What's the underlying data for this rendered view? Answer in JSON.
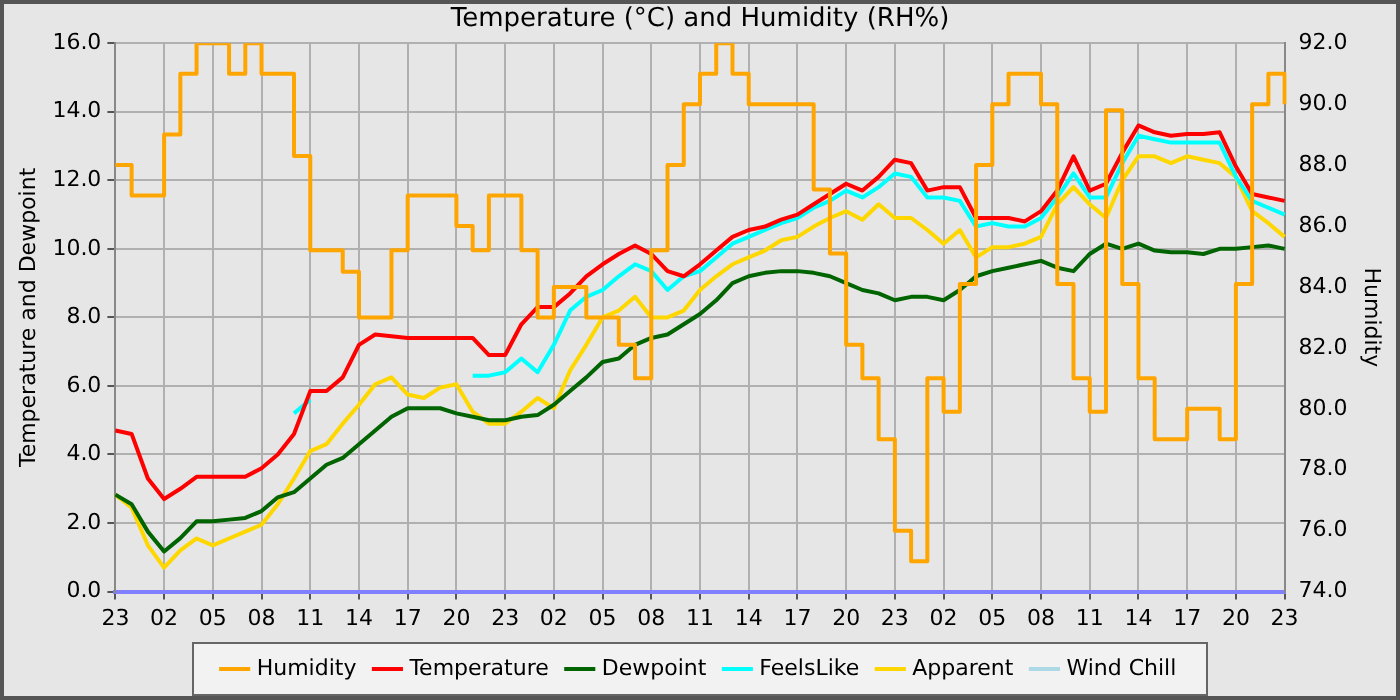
{
  "chart_data": {
    "type": "line",
    "title": "Temperature (°C) and Humidity (RH%)",
    "ylabel": "Temperature and Dewpoint",
    "y2label": "Humidity",
    "categories": [
      "23",
      null,
      null,
      "02",
      null,
      null,
      "05",
      null,
      null,
      "08",
      null,
      null,
      "11",
      null,
      null,
      "14",
      null,
      null,
      "17",
      null,
      null,
      "20",
      null,
      null,
      "23",
      null,
      null,
      "02",
      null,
      null,
      "05",
      null,
      null,
      "08",
      null,
      null,
      "11",
      null,
      null,
      "14",
      null,
      null,
      "17",
      null,
      null,
      "20",
      null,
      null,
      "23",
      null,
      null,
      "02",
      null,
      null,
      "05",
      null,
      null,
      "08",
      null,
      null,
      "11",
      null,
      null,
      "14",
      null,
      null,
      "17",
      null,
      null,
      "20",
      null,
      null,
      "23"
    ],
    "ylim": [
      0,
      16
    ],
    "yticks": [
      {
        "value": 0,
        "label": "0.0"
      },
      {
        "value": 2,
        "label": "2.0"
      },
      {
        "value": 4,
        "label": "4.0"
      },
      {
        "value": 6,
        "label": "6.0"
      },
      {
        "value": 8,
        "label": "8.0"
      },
      {
        "value": 10,
        "label": "10.0"
      },
      {
        "value": 12,
        "label": "12.0"
      },
      {
        "value": 14,
        "label": "14.0"
      },
      {
        "value": 16,
        "label": "16.0"
      }
    ],
    "y2lim": [
      74,
      92
    ],
    "y2ticks": [
      {
        "value": 74,
        "label": "74.0"
      },
      {
        "value": 76,
        "label": "76.0"
      },
      {
        "value": 78,
        "label": "78.0"
      },
      {
        "value": 80,
        "label": "80.0"
      },
      {
        "value": 82,
        "label": "82.0"
      },
      {
        "value": 84,
        "label": "84.0"
      },
      {
        "value": 86,
        "label": "86.0"
      },
      {
        "value": 88,
        "label": "88.0"
      },
      {
        "value": 90,
        "label": "90.0"
      },
      {
        "value": 92,
        "label": "92.0"
      }
    ],
    "grid": true,
    "legend": "bottom",
    "marker": "none",
    "series": [
      {
        "name": "Humidity",
        "color": "#ffa500",
        "type": "step",
        "axis": "y2",
        "values": [
          88,
          87,
          87,
          89,
          91,
          92,
          92,
          91,
          92,
          91,
          91,
          88.3,
          85.2,
          85.2,
          84.5,
          83,
          83,
          85.2,
          87,
          87,
          87,
          86,
          85.2,
          87,
          87,
          85.2,
          83,
          84,
          84,
          83,
          83,
          82.1,
          81,
          85.2,
          88,
          90,
          91,
          92,
          91,
          90,
          90,
          90,
          90,
          87.2,
          85.1,
          82.1,
          81,
          79,
          76,
          75,
          81,
          79.9,
          84.1,
          88,
          90,
          91,
          91,
          90,
          84.1,
          81,
          79.9,
          89.8,
          84.1,
          81,
          79,
          79,
          80,
          80,
          79,
          84.1,
          90,
          91,
          90
        ]
      },
      {
        "name": "Temperature",
        "color": "#ff0000",
        "values": [
          4.7,
          4.6,
          3.3,
          2.7,
          3.0,
          3.35,
          3.35,
          3.35,
          3.35,
          3.6,
          4.0,
          4.6,
          5.85,
          5.85,
          6.25,
          7.2,
          7.5,
          7.45,
          7.4,
          7.4,
          7.4,
          7.4,
          7.4,
          6.9,
          6.9,
          7.8,
          8.3,
          8.3,
          8.7,
          9.2,
          9.55,
          9.85,
          10.1,
          9.85,
          9.35,
          9.2,
          9.55,
          9.95,
          10.35,
          10.55,
          10.65,
          10.85,
          11.0,
          11.3,
          11.6,
          11.9,
          11.7,
          12.1,
          12.6,
          12.5,
          11.7,
          11.8,
          11.8,
          10.9,
          10.9,
          10.9,
          10.8,
          11.1,
          11.7,
          12.7,
          11.7,
          11.9,
          12.8,
          13.6,
          13.4,
          13.3,
          13.35,
          13.35,
          13.4,
          12.4,
          11.6,
          11.5,
          11.4
        ]
      },
      {
        "name": "Dewpoint",
        "color": "#006400",
        "values": [
          2.83,
          2.55,
          1.75,
          1.17,
          1.56,
          2.05,
          2.05,
          2.1,
          2.15,
          2.35,
          2.75,
          2.9,
          3.3,
          3.7,
          3.9,
          4.3,
          4.7,
          5.1,
          5.35,
          5.35,
          5.35,
          5.2,
          5.1,
          5.0,
          5.0,
          5.1,
          5.15,
          5.45,
          5.85,
          6.25,
          6.7,
          6.8,
          7.2,
          7.4,
          7.5,
          7.8,
          8.1,
          8.5,
          9.0,
          9.2,
          9.3,
          9.35,
          9.35,
          9.3,
          9.2,
          9.0,
          8.8,
          8.7,
          8.5,
          8.6,
          8.6,
          8.5,
          8.8,
          9.2,
          9.35,
          9.45,
          9.55,
          9.65,
          9.45,
          9.35,
          9.85,
          10.15,
          10.0,
          10.15,
          9.95,
          9.9,
          9.9,
          9.85,
          10.0,
          10.0,
          10.05,
          10.1,
          10.0
        ]
      },
      {
        "name": "FeelsLike",
        "color": "#00ffff",
        "values": [
          null,
          null,
          null,
          null,
          null,
          null,
          null,
          null,
          null,
          null,
          null,
          5.2,
          5.6,
          null,
          null,
          null,
          null,
          null,
          null,
          null,
          null,
          null,
          6.3,
          6.3,
          6.4,
          6.8,
          6.4,
          7.2,
          8.2,
          8.6,
          8.8,
          9.2,
          9.55,
          9.35,
          8.8,
          9.2,
          9.35,
          9.75,
          10.15,
          10.35,
          10.55,
          10.75,
          10.9,
          11.2,
          11.4,
          11.7,
          11.5,
          11.8,
          12.2,
          12.1,
          11.5,
          11.5,
          11.4,
          10.65,
          10.75,
          10.65,
          10.65,
          10.9,
          11.5,
          12.2,
          11.5,
          11.5,
          12.5,
          13.3,
          13.2,
          13.1,
          13.1,
          13.1,
          13.1,
          12.1,
          11.4,
          11.2,
          11.0
        ]
      },
      {
        "name": "Apparent",
        "color": "#ffd700",
        "values": [
          2.83,
          2.45,
          1.35,
          0.7,
          1.2,
          1.55,
          1.35,
          1.55,
          1.75,
          1.95,
          2.55,
          3.3,
          4.1,
          4.3,
          4.9,
          5.45,
          6.05,
          6.25,
          5.75,
          5.65,
          5.95,
          6.05,
          5.25,
          4.9,
          4.9,
          5.25,
          5.65,
          5.35,
          6.45,
          7.2,
          8.0,
          8.2,
          8.6,
          8.0,
          8.0,
          8.2,
          8.8,
          9.2,
          9.55,
          9.75,
          9.95,
          10.25,
          10.35,
          10.65,
          10.9,
          11.1,
          10.85,
          11.3,
          10.9,
          10.9,
          10.55,
          10.15,
          10.55,
          9.75,
          10.05,
          10.05,
          10.15,
          10.35,
          11.3,
          11.8,
          11.3,
          10.9,
          12.0,
          12.7,
          12.7,
          12.5,
          12.7,
          12.6,
          12.5,
          12.1,
          11.1,
          10.75,
          10.35
        ]
      },
      {
        "name": "Wind Chill",
        "color": "#add8e6",
        "values": [
          null,
          null,
          null,
          null,
          null,
          null,
          null,
          null,
          null,
          null,
          null,
          null,
          null,
          null,
          null,
          null,
          null,
          null,
          null,
          null,
          null,
          null,
          null,
          null,
          null,
          null,
          null,
          null,
          null,
          null,
          null,
          null,
          null,
          null,
          null,
          null,
          null,
          null,
          null,
          null,
          null,
          null,
          null,
          null,
          null,
          null,
          null,
          null,
          null,
          null,
          null,
          null,
          null,
          null,
          null,
          null,
          null,
          null,
          null,
          null,
          null,
          null,
          null,
          null,
          null,
          null,
          null,
          null,
          null,
          null,
          null,
          null,
          null
        ]
      }
    ]
  }
}
